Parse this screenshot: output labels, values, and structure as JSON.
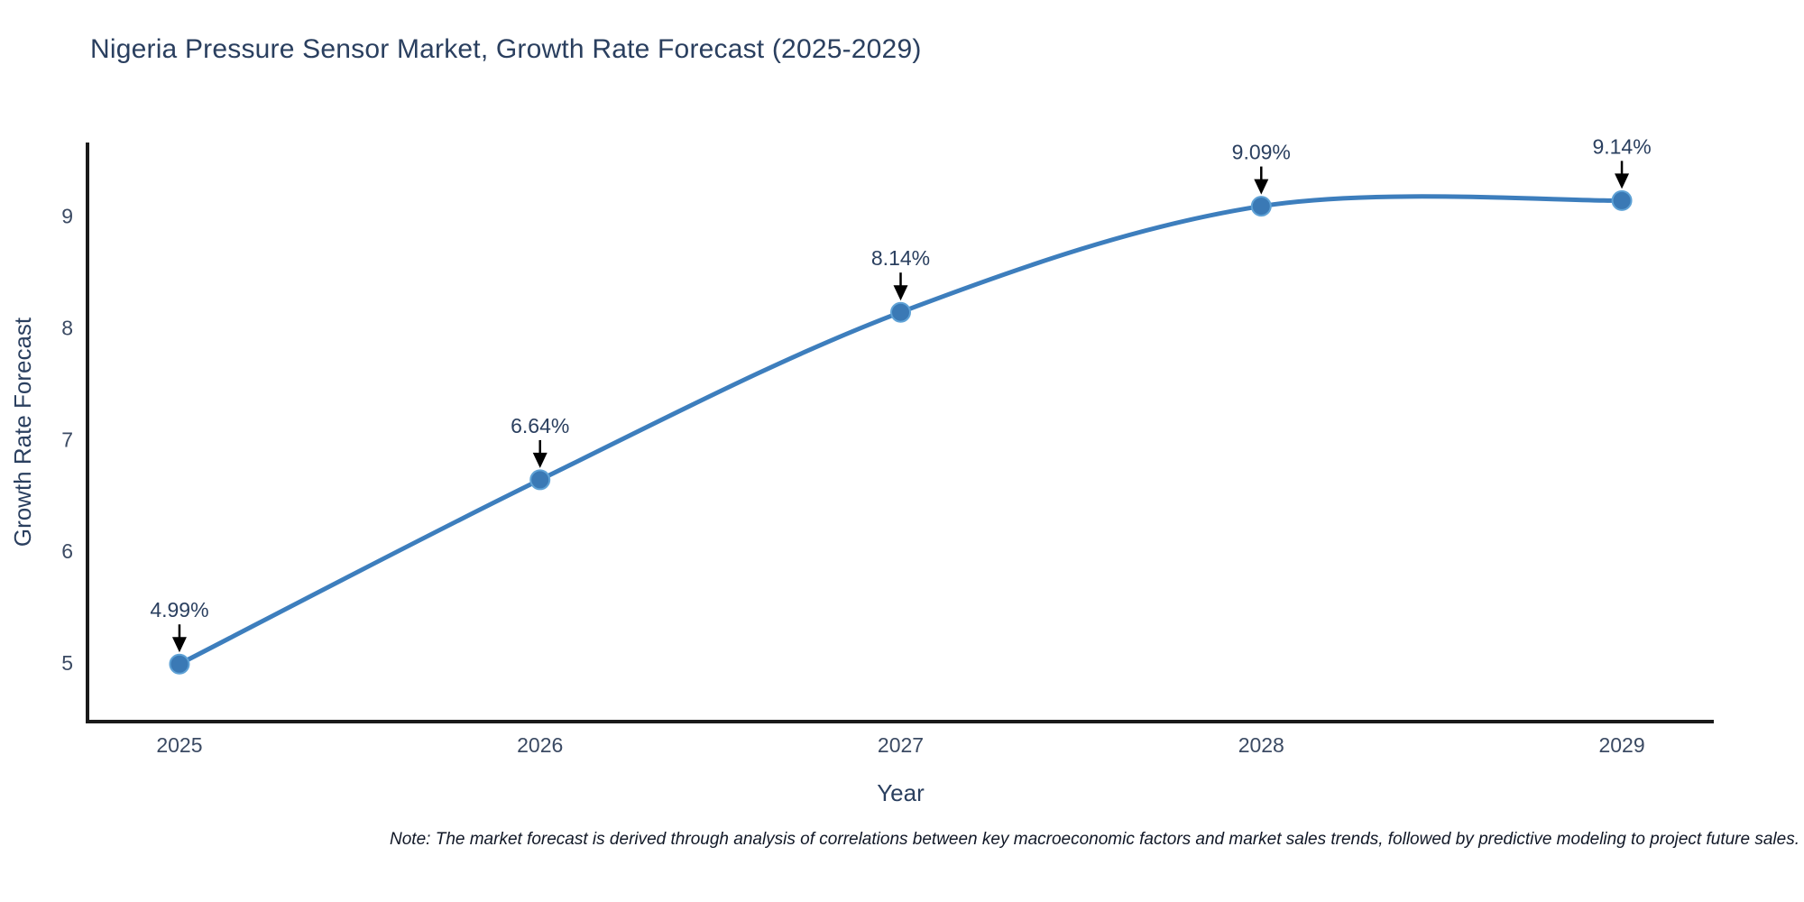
{
  "title": "Nigeria Pressure Sensor Market, Growth Rate Forecast (2025-2029)",
  "note": "Note: The market forecast is derived through analysis of correlations between key macroeconomic factors and market sales trends, followed by predictive modeling to project future sales.",
  "colors": {
    "line": "#3d7ebd",
    "marker_fill": "#3a79b5",
    "marker_edge": "#5fa2d6",
    "axis_line": "#1a1a1a",
    "tick_text": "#3b4a63",
    "axis_title_text": "#2a3f5f",
    "annotation_text": "#2a3f5f",
    "annotation_arrow": "#000000",
    "title_text": "#2a3f5f",
    "background": "#ffffff"
  },
  "chart_data": {
    "type": "line",
    "title": "Nigeria Pressure Sensor Market, Growth Rate Forecast (2025-2029)",
    "x": [
      2025,
      2026,
      2027,
      2028,
      2029
    ],
    "y": [
      4.99,
      6.64,
      8.14,
      9.09,
      9.14
    ],
    "point_labels": [
      "4.99%",
      "6.64%",
      "8.14%",
      "9.09%",
      "9.14%"
    ],
    "xlabel": "Year",
    "ylabel": "Growth Rate Forecast",
    "xticks": [
      2025,
      2026,
      2027,
      2028,
      2029
    ],
    "xtick_labels": [
      "2025",
      "2026",
      "2027",
      "2028",
      "2029"
    ],
    "yticks": [
      5,
      6,
      7,
      8,
      9
    ],
    "ytick_labels": [
      "5",
      "6",
      "7",
      "8",
      "9"
    ],
    "xlim": [
      2024.745,
      2029.255
    ],
    "ylim": [
      4.475,
      9.66
    ],
    "line_shape": "spline",
    "grid": false,
    "legend_position": "none",
    "annotations_have_arrows": true
  }
}
